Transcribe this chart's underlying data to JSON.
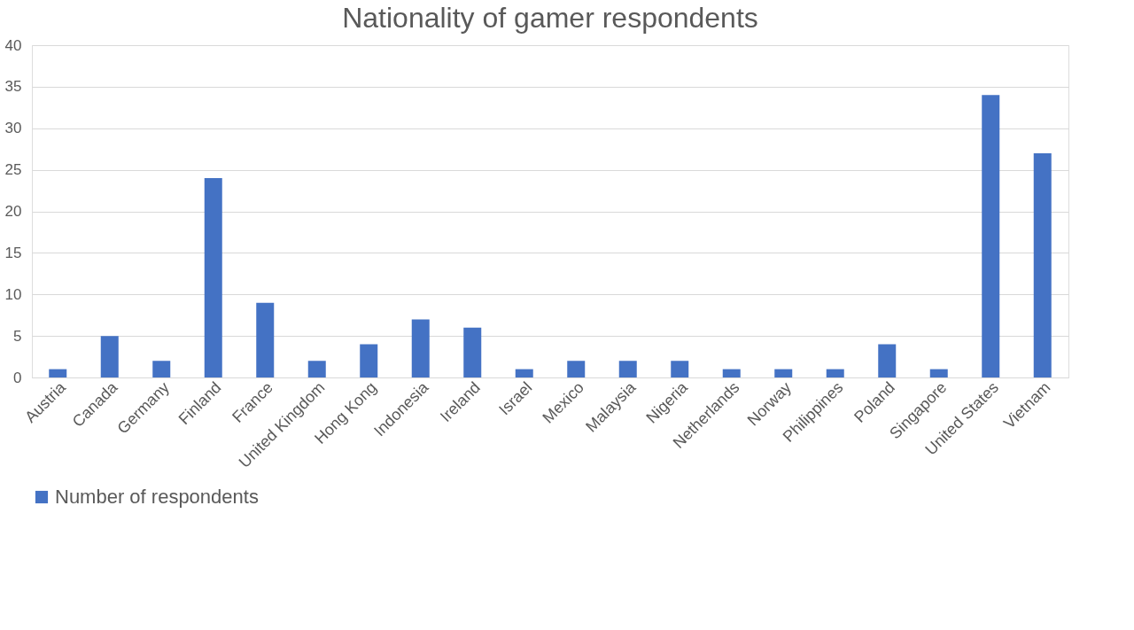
{
  "chart_data": {
    "type": "bar",
    "title": "Nationality of gamer respondents",
    "categories": [
      "Austria",
      "Canada",
      "Germany",
      "Finland",
      "France",
      "United Kingdom",
      "Hong Kong",
      "Indonesia",
      "Ireland",
      "Israel",
      "Mexico",
      "Malaysia",
      "Nigeria",
      "Netherlands",
      "Norway",
      "Philippines",
      "Poland",
      "Singapore",
      "United States",
      "Vietnam"
    ],
    "series": [
      {
        "name": "Number of respondents",
        "color": "#4472c4",
        "values": [
          1,
          5,
          2,
          24,
          9,
          2,
          4,
          7,
          6,
          1,
          2,
          2,
          2,
          1,
          1,
          1,
          4,
          1,
          34,
          27
        ]
      }
    ],
    "ylim": [
      0,
      40
    ],
    "yticks": [
      0,
      5,
      10,
      15,
      20,
      25,
      30,
      35,
      40
    ],
    "grid": "y",
    "legend": "bottom"
  }
}
